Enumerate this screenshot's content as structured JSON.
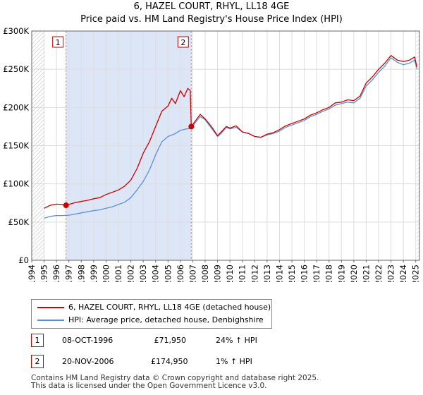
{
  "chart_data": {
    "type": "line",
    "title": "6, HAZEL COURT, RHYL, LL18 4GE",
    "subtitle": "Price paid vs. HM Land Registry's House Price Index (HPI)",
    "xlabel": "",
    "ylabel": "",
    "xlim": [
      1994.0,
      2025.3
    ],
    "ylim": [
      0,
      300000
    ],
    "y_ticks": [
      {
        "value": 0,
        "label": "£0"
      },
      {
        "value": 50000,
        "label": "£50K"
      },
      {
        "value": 100000,
        "label": "£100K"
      },
      {
        "value": 150000,
        "label": "£150K"
      },
      {
        "value": 200000,
        "label": "£200K"
      },
      {
        "value": 250000,
        "label": "£250K"
      },
      {
        "value": 300000,
        "label": "£300K"
      }
    ],
    "x_ticks": [
      "1994",
      "1995",
      "1996",
      "1997",
      "1998",
      "1999",
      "2000",
      "2001",
      "2002",
      "2003",
      "2004",
      "2005",
      "2006",
      "2007",
      "2008",
      "2009",
      "2010",
      "2011",
      "2012",
      "2013",
      "2014",
      "2015",
      "2016",
      "2017",
      "2018",
      "2019",
      "2020",
      "2021",
      "2022",
      "2023",
      "2024",
      "2025"
    ],
    "grid": true,
    "colors": {
      "price_paid": "#cc0000",
      "hpi": "#5b8fd4",
      "shade": "#dde6f7",
      "vline": "#e88080"
    },
    "shaded_span": [
      1996.77,
      2006.88
    ],
    "series": [
      {
        "name": "6, HAZEL COURT, RHYL, LL18 4GE (detached house)",
        "x": [
          1995.0,
          1995.5,
          1996.0,
          1996.5,
          1996.77,
          1997.0,
          1997.5,
          1998.0,
          1998.5,
          1999.0,
          1999.5,
          2000.0,
          2000.5,
          2001.0,
          2001.5,
          2002.0,
          2002.5,
          2003.0,
          2003.5,
          2004.0,
          2004.5,
          2005.0,
          2005.3,
          2005.6,
          2006.0,
          2006.3,
          2006.6,
          2006.8,
          2006.88,
          2007.2,
          2007.6,
          2008.0,
          2008.5,
          2009.0,
          2009.3,
          2009.7,
          2010.0,
          2010.5,
          2011.0,
          2011.5,
          2012.0,
          2012.5,
          2013.0,
          2013.5,
          2014.0,
          2014.5,
          2015.0,
          2015.5,
          2016.0,
          2016.5,
          2017.0,
          2017.5,
          2018.0,
          2018.5,
          2019.0,
          2019.5,
          2020.0,
          2020.5,
          2021.0,
          2021.5,
          2022.0,
          2022.5,
          2023.0,
          2023.5,
          2024.0,
          2024.5,
          2024.9,
          2025.1
        ],
        "y": [
          68000,
          72000,
          73500,
          73000,
          71950,
          73000,
          75500,
          77000,
          78500,
          80500,
          82000,
          86000,
          89000,
          92000,
          97000,
          105000,
          120000,
          140000,
          155000,
          175000,
          195000,
          202000,
          212000,
          205000,
          222000,
          214000,
          225000,
          222000,
          174950,
          182000,
          191000,
          185000,
          175000,
          163000,
          168000,
          175000,
          173000,
          176000,
          168000,
          166000,
          162000,
          161000,
          165000,
          167000,
          171000,
          176000,
          179000,
          182000,
          185000,
          190000,
          193000,
          197000,
          200000,
          206000,
          207000,
          210000,
          209000,
          215000,
          232000,
          240000,
          250000,
          258000,
          268000,
          262000,
          260000,
          262000,
          266000,
          253000
        ]
      },
      {
        "name": "HPI: Average price, detached house, Denbighshire",
        "x": [
          1995.0,
          1995.5,
          1996.0,
          1996.5,
          1997.0,
          1997.5,
          1998.0,
          1998.5,
          1999.0,
          1999.5,
          2000.0,
          2000.5,
          2001.0,
          2001.5,
          2002.0,
          2002.5,
          2003.0,
          2003.5,
          2004.0,
          2004.5,
          2005.0,
          2005.5,
          2006.0,
          2006.5,
          2006.88,
          2007.2,
          2007.6,
          2008.0,
          2008.5,
          2009.0,
          2009.3,
          2009.7,
          2010.0,
          2010.5,
          2011.0,
          2011.5,
          2012.0,
          2012.5,
          2013.0,
          2013.5,
          2014.0,
          2014.5,
          2015.0,
          2015.5,
          2016.0,
          2016.5,
          2017.0,
          2017.5,
          2018.0,
          2018.5,
          2019.0,
          2019.5,
          2020.0,
          2020.5,
          2021.0,
          2021.5,
          2022.0,
          2022.5,
          2023.0,
          2023.5,
          2024.0,
          2024.5,
          2024.9,
          2025.1
        ],
        "y": [
          55000,
          57500,
          58500,
          58500,
          59000,
          60500,
          62000,
          63500,
          65000,
          66000,
          68000,
          70000,
          73000,
          76000,
          82000,
          92000,
          103000,
          118000,
          138000,
          155000,
          162000,
          165000,
          170000,
          172000,
          172500,
          180000,
          188000,
          184000,
          173000,
          162000,
          166000,
          174000,
          172000,
          174000,
          168000,
          166000,
          162000,
          161000,
          164000,
          166000,
          169000,
          174000,
          177000,
          180000,
          183000,
          188000,
          191000,
          195000,
          198000,
          203000,
          205000,
          207000,
          206000,
          212000,
          228000,
          236000,
          246000,
          254000,
          265000,
          259000,
          256000,
          258000,
          262000,
          250000
        ]
      }
    ],
    "sales": [
      {
        "number": "1",
        "x": 1996.77,
        "price": 71950
      },
      {
        "number": "2",
        "x": 2006.88,
        "price": 174950
      }
    ]
  },
  "legend": {
    "items": [
      {
        "label": "6, HAZEL COURT, RHYL, LL18 4GE (detached house)"
      },
      {
        "label": "HPI: Average price, detached house, Denbighshire"
      }
    ]
  },
  "sales_table": [
    {
      "number": "1",
      "date": "08-OCT-1996",
      "price": "£71,950",
      "hpi": "24% ↑ HPI"
    },
    {
      "number": "2",
      "date": "20-NOV-2006",
      "price": "£174,950",
      "hpi": "1% ↑ HPI"
    }
  ],
  "footer": {
    "line1": "Contains HM Land Registry data © Crown copyright and database right 2025.",
    "line2": "This data is licensed under the Open Government Licence v3.0."
  }
}
